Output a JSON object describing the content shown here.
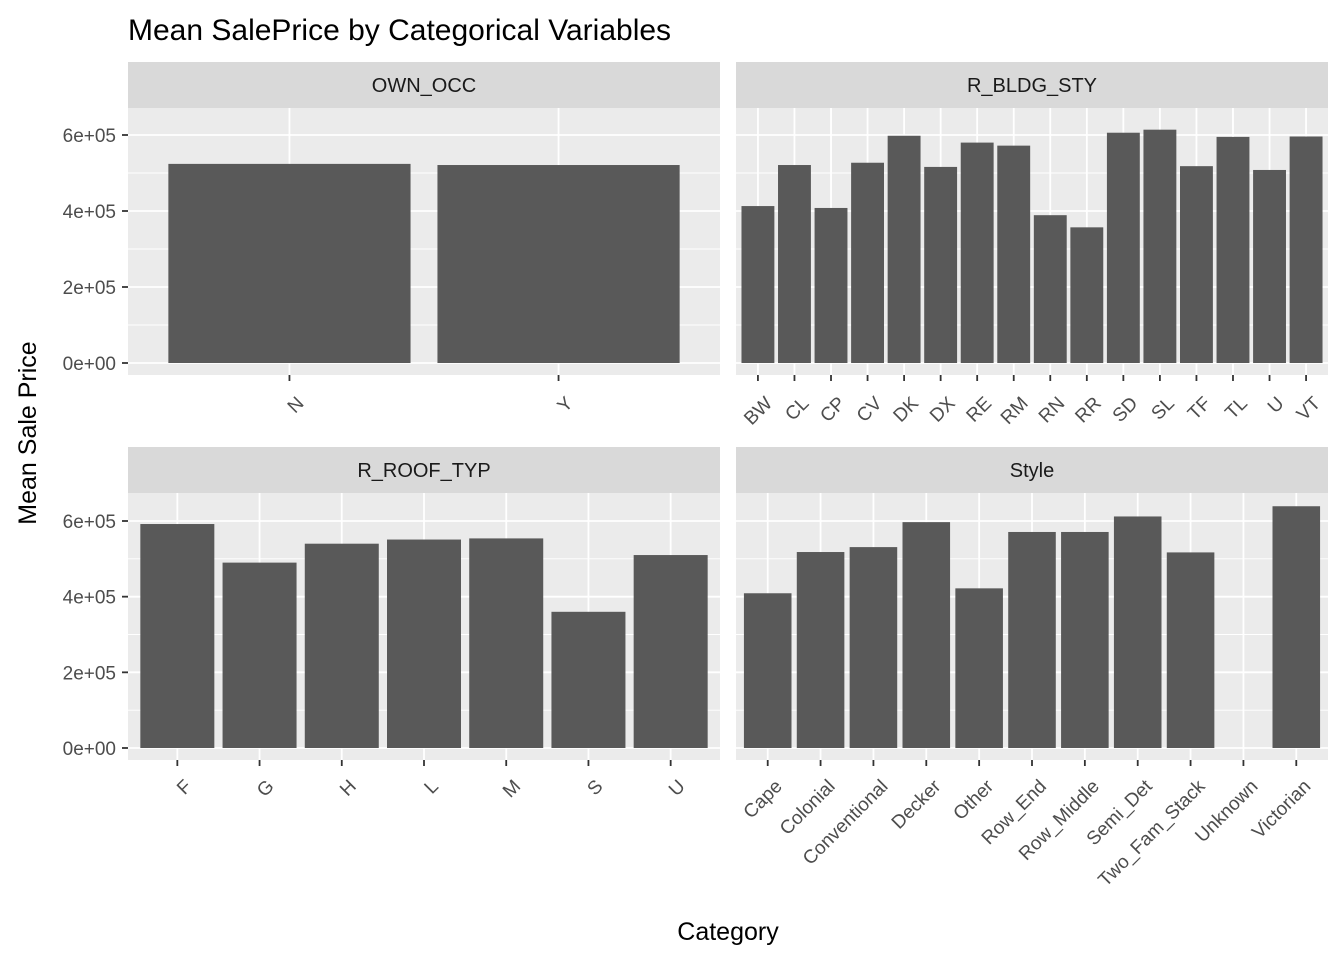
{
  "chart_data": {
    "type": "bar",
    "title": "Mean SalePrice by Categorical Variables",
    "xlabel": "Category",
    "ylabel": "Mean Sale Price",
    "ylim": [
      0,
      750000
    ],
    "y_ticks": [
      {
        "value": 0,
        "label": "0e+00"
      },
      {
        "value": 200000,
        "label": "2e+05"
      },
      {
        "value": 400000,
        "label": "4e+05"
      },
      {
        "value": 600000,
        "label": "6e+05"
      }
    ],
    "grid": true,
    "bar_color": "#595959",
    "panel_bg": "#ebebeb",
    "strip_bg": "#d9d9d9",
    "facets": [
      {
        "name": "OWN_OCC",
        "categories": [
          "N",
          "Y"
        ],
        "values": [
          524000,
          521000
        ]
      },
      {
        "name": "R_BLDG_STY",
        "categories": [
          "BW",
          "CL",
          "CP",
          "CV",
          "DK",
          "DX",
          "RE",
          "RM",
          "RN",
          "RR",
          "SD",
          "SL",
          "TF",
          "TL",
          "U",
          "VT"
        ],
        "values": [
          413000,
          521000,
          408000,
          527000,
          598000,
          516000,
          580000,
          572000,
          389000,
          357000,
          606000,
          614000,
          518000,
          595000,
          508000,
          596000
        ]
      },
      {
        "name": "R_ROOF_TYP",
        "categories": [
          "F",
          "G",
          "H",
          "L",
          "M",
          "S",
          "U"
        ],
        "values": [
          592000,
          490000,
          540000,
          551000,
          554000,
          360000,
          510000
        ]
      },
      {
        "name": "Style",
        "categories": [
          "Cape",
          "Colonial",
          "Conventional",
          "Decker",
          "Other",
          "Row_End",
          "Row_Middle",
          "Semi_Det",
          "Two_Fam_Stack",
          "Unknown",
          "Victorian"
        ],
        "values": [
          409000,
          518000,
          531000,
          597000,
          422000,
          571000,
          571000,
          612000,
          517000,
          null,
          639000
        ]
      }
    ]
  }
}
